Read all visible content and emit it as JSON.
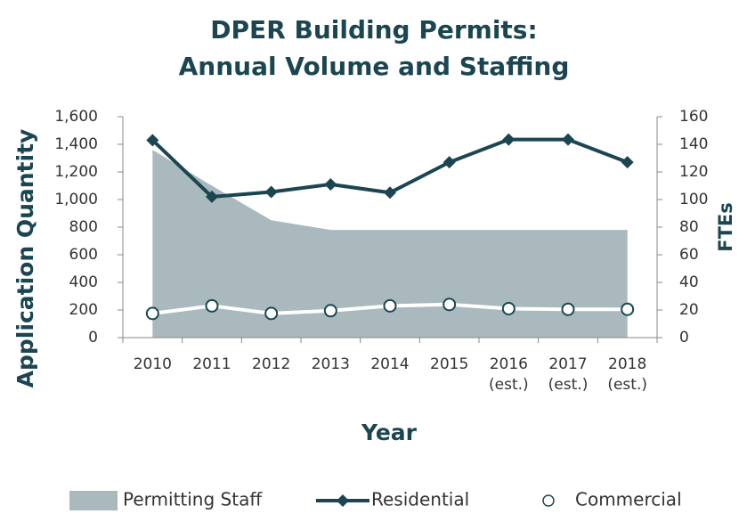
{
  "chart_data": {
    "type": "combo",
    "title": [
      "DPER Building Permits:",
      "Annual Volume and Staffing"
    ],
    "x_label": "Year",
    "y_label": "Application Quantity",
    "y2_label": "FTEs",
    "categories": [
      "2010",
      "2011",
      "2012",
      "2013",
      "2014",
      "2015",
      "2016 (est.)",
      "2017 (est.)",
      "2018 (est.)"
    ],
    "ylim": [
      0,
      1600
    ],
    "yticks": [
      0,
      200,
      400,
      600,
      800,
      {
        "value": 1000,
        "label": "1,000"
      },
      {
        "value": 1200,
        "label": "1,200"
      },
      {
        "value": 1400,
        "label": "1,400"
      },
      {
        "value": 1600,
        "label": "1,600"
      }
    ],
    "y2lim": [
      0,
      160
    ],
    "y2ticks": [
      0,
      20,
      40,
      60,
      80,
      100,
      120,
      140,
      160
    ],
    "legend": "bottom",
    "series": [
      {
        "name": "Permitting Staff",
        "kind": "area",
        "axis": "y2",
        "color": "#a9b9be",
        "values": [
          136,
          110,
          85,
          78,
          78,
          78,
          78,
          78,
          78
        ]
      },
      {
        "name": "Residential",
        "kind": "line",
        "marker": "diamond",
        "color": "#1b4651",
        "values": [
          1430,
          1020,
          1055,
          1110,
          1050,
          1270,
          1435,
          1435,
          1270
        ]
      },
      {
        "name": "Commercial",
        "kind": "line",
        "marker": "circle",
        "color": "#ffffff",
        "values": [
          175,
          230,
          175,
          195,
          230,
          240,
          210,
          205,
          205
        ]
      }
    ]
  }
}
